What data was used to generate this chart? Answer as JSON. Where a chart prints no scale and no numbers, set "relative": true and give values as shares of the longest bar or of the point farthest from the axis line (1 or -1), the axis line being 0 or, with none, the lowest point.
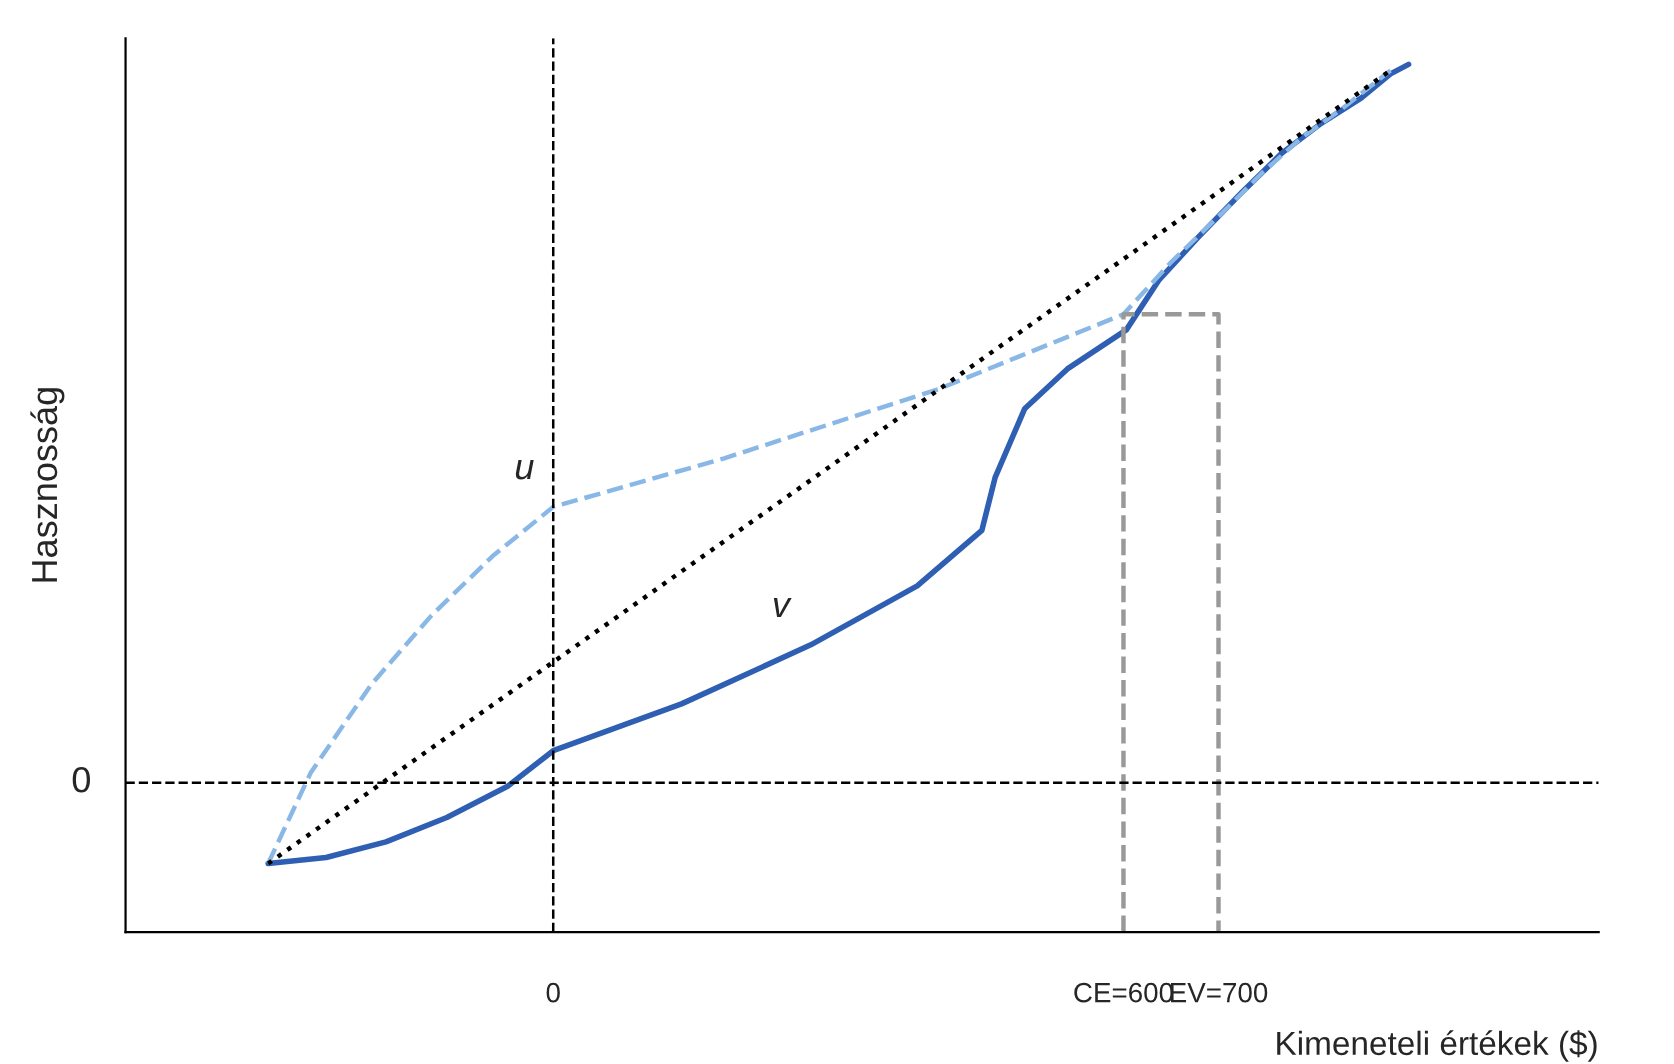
{
  "chart_data": {
    "type": "line",
    "relative": true,
    "ylabel": "Hasznosság",
    "xlabel": "Kimeneteli értékek ($)",
    "xlim": [
      -450,
      1100
    ],
    "xticks": [
      0,
      {
        "value": 600,
        "label": "CE=600"
      },
      {
        "value": 700,
        "label": "EV=700"
      }
    ],
    "series": [
      {
        "name": "v",
        "color": "#2f5fb3",
        "line_style": "solid",
        "x": [
          -300,
          -239,
          -176,
          -112,
          -48,
          0,
          135,
          271,
          383,
          451,
          465,
          496,
          541,
          603,
          637,
          678,
          725,
          767,
          808,
          850,
          881,
          900
        ],
        "values": [
          0.079,
          0.086,
          0.104,
          0.132,
          0.168,
          0.209,
          0.263,
          0.331,
          0.399,
          0.463,
          0.524,
          0.603,
          0.649,
          0.694,
          0.751,
          0.8,
          0.853,
          0.898,
          0.932,
          0.961,
          0.989,
          1
        ]
      },
      {
        "name": "u",
        "color": "#8ab8e6",
        "line_style": "dashed",
        "x": [
          -300,
          -255,
          -191,
          -128,
          -64,
          0,
          180,
          406,
          600,
          651,
          705,
          746,
          788,
          829,
          881
        ],
        "values": [
          0.079,
          0.184,
          0.286,
          0.365,
          0.433,
          0.49,
          0.546,
          0.626,
          0.712,
          0.773,
          0.83,
          0.875,
          0.916,
          0.948,
          0.993
        ]
      },
      {
        "color": "#000000",
        "line_style": "dotted",
        "x": [
          -300,
          881
        ],
        "values": [
          0.079,
          0.993
        ]
      },
      {
        "color": "#999999",
        "line_style": "dashed",
        "x": [
          600,
          600,
          700,
          700
        ],
        "values": [
          0,
          0.712,
          0.712,
          0
        ]
      }
    ],
    "ref_lines": [
      {
        "axis": "y",
        "value": 0.172,
        "label": "0",
        "color": "#000000",
        "line_style": "dashed"
      },
      {
        "axis": "x",
        "value": 0,
        "color": "#000000",
        "line_style": "dashed"
      }
    ]
  }
}
